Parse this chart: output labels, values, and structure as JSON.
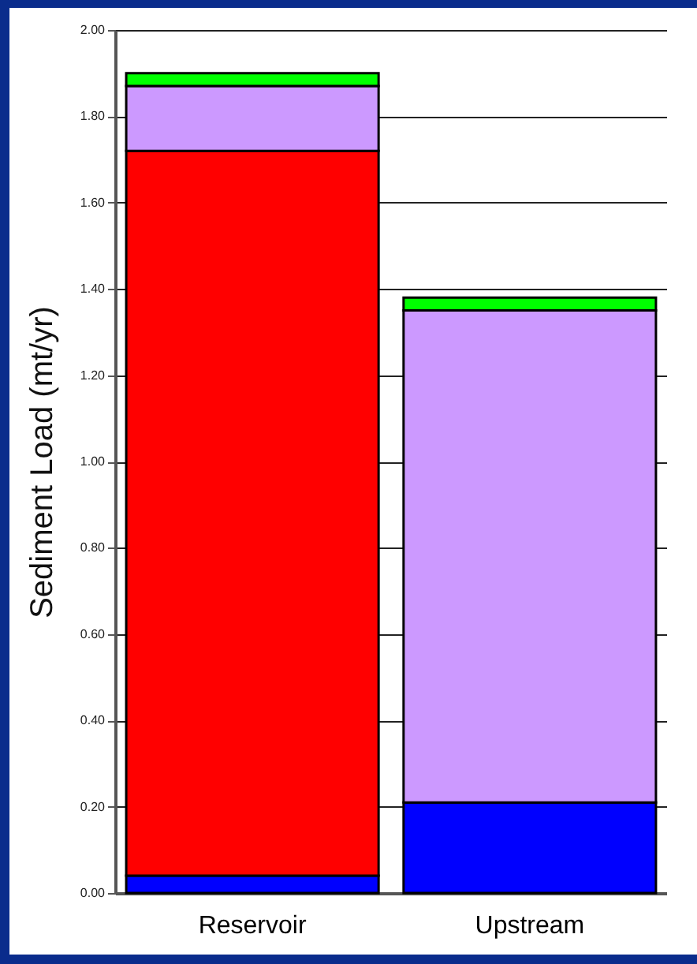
{
  "chart_data": {
    "type": "bar",
    "stacked": true,
    "ylabel": "Sediment Load (mt/yr)",
    "categories": [
      "Reservoir",
      "Upstream"
    ],
    "series": [
      {
        "color": "#0000ff",
        "values": [
          0.04,
          0.21
        ]
      },
      {
        "color": "#ff0000",
        "values": [
          1.68,
          null
        ]
      },
      {
        "color": "#cc99ff",
        "values": [
          0.15,
          1.14
        ]
      },
      {
        "color": "#00ff00",
        "values": [
          0.03,
          0.03
        ]
      }
    ],
    "ylim": [
      0,
      2
    ],
    "yticks": [
      {
        "value": 0,
        "label": "0.00"
      },
      {
        "value": 0.2,
        "label": "0.20"
      },
      {
        "value": 0.4,
        "label": "0.40"
      },
      {
        "value": 0.6,
        "label": "0.60"
      },
      {
        "value": 0.8,
        "label": "0.80"
      },
      {
        "value": 1,
        "label": "1.00"
      },
      {
        "value": 1.2,
        "label": "1.20"
      },
      {
        "value": 1.4,
        "label": "1.40"
      },
      {
        "value": 1.6,
        "label": "1.60"
      },
      {
        "value": 1.8,
        "label": "1.80"
      },
      {
        "value": 2,
        "label": "2.00"
      }
    ],
    "grid": "y",
    "legend": false
  }
}
